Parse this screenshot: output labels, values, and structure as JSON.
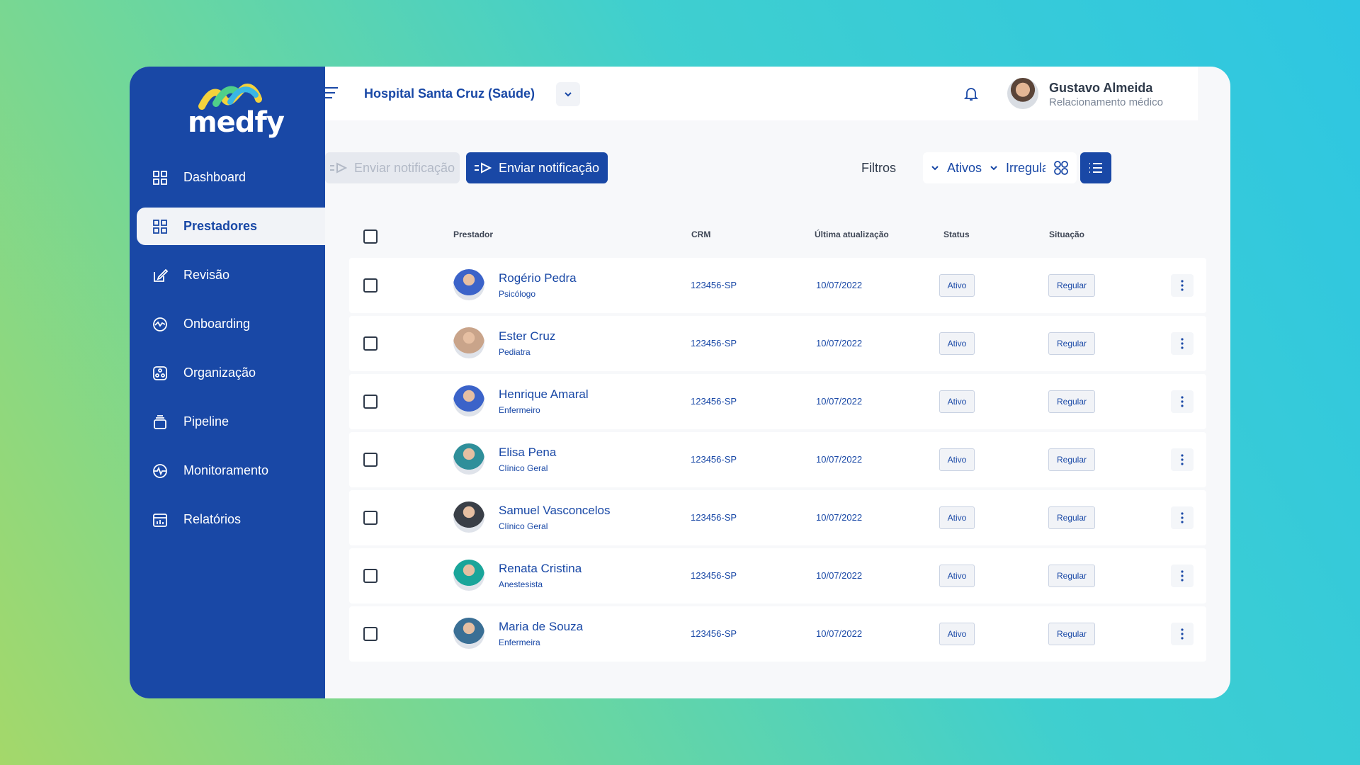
{
  "brand": {
    "name": "medfy"
  },
  "sidebar": {
    "items": [
      {
        "label": "Dashboard",
        "icon": "grid-icon",
        "active": false
      },
      {
        "label": "Prestadores",
        "icon": "grid-icon",
        "active": true
      },
      {
        "label": "Revisão",
        "icon": "edit-icon",
        "active": false
      },
      {
        "label": "Onboarding",
        "icon": "pulse-circle-icon",
        "active": false
      },
      {
        "label": "Organização",
        "icon": "organization-icon",
        "active": false
      },
      {
        "label": "Pipeline",
        "icon": "stack-icon",
        "active": false
      },
      {
        "label": "Monitoramento",
        "icon": "monitor-pulse-icon",
        "active": false
      },
      {
        "label": "Relatórios",
        "icon": "report-icon",
        "active": false
      }
    ]
  },
  "header": {
    "hospital": "Hospital Santa Cruz (Saúde)",
    "user_name": "Gustavo Almeida",
    "user_role": "Relacionamento médico"
  },
  "toolbar": {
    "send_disabled_label": "Enviar notificação",
    "send_label": "Enviar notificação",
    "filters_label": "Filtros",
    "filter_active": "Ativos",
    "filter_irregular": "Irregular"
  },
  "table": {
    "columns": {
      "provider": "Prestador",
      "crm": "CRM",
      "updated": "Última atualização",
      "status": "Status",
      "situation": "Situação"
    },
    "rows": [
      {
        "name": "Rogério Pedra",
        "specialty": "Psicólogo",
        "crm": "123456-SP",
        "updated": "10/07/2022",
        "status": "Ativo",
        "situation": "Regular",
        "avatar_color": "#3b63c9"
      },
      {
        "name": "Ester Cruz",
        "specialty": "Pediatra",
        "crm": "123456-SP",
        "updated": "10/07/2022",
        "status": "Ativo",
        "situation": "Regular",
        "avatar_color": "#c9a48a"
      },
      {
        "name": "Henrique Amaral",
        "specialty": "Enfermeiro",
        "crm": "123456-SP",
        "updated": "10/07/2022",
        "status": "Ativo",
        "situation": "Regular",
        "avatar_color": "#3b63c9"
      },
      {
        "name": "Elisa Pena",
        "specialty": "Clínico Geral",
        "crm": "123456-SP",
        "updated": "10/07/2022",
        "status": "Ativo",
        "situation": "Regular",
        "avatar_color": "#2f8f9a"
      },
      {
        "name": "Samuel Vasconcelos",
        "specialty": "Clínico Geral",
        "crm": "123456-SP",
        "updated": "10/07/2022",
        "status": "Ativo",
        "situation": "Regular",
        "avatar_color": "#3a3f47"
      },
      {
        "name": "Renata Cristina",
        "specialty": "Anestesista",
        "crm": "123456-SP",
        "updated": "10/07/2022",
        "status": "Ativo",
        "situation": "Regular",
        "avatar_color": "#1aa59a"
      },
      {
        "name": "Maria de Souza",
        "specialty": "Enfermeira",
        "crm": "123456-SP",
        "updated": "10/07/2022",
        "status": "Ativo",
        "situation": "Regular",
        "avatar_color": "#3a6f95"
      }
    ]
  },
  "colors": {
    "primary": "#1948a6",
    "accent_logo": [
      "#f4d23c",
      "#4fcf8a",
      "#39b6e6"
    ]
  }
}
